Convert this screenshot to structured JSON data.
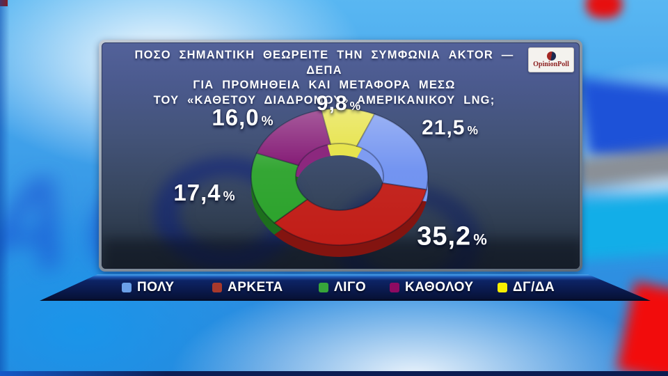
{
  "header": {
    "title_lines": [
      "ΠΟΣΟ ΣΗΜΑΝΤΙΚΗ ΘΕΩΡΕΙΤΕ ΤΗΝ ΣΥΜΦΩΝΙΑ AKTOR — ΔΕΠΑ",
      "ΓΙΑ ΠΡΟΜΗΘΕΙΑ ΚΑΙ ΜΕΤΑΦΟΡΑ ΜΕΣΩ",
      "ΤΟΥ «ΚΑΘΕΤΟΥ ΔΙΑΔΡΟΜΟΥ» ΑΜΕΡΙΚΑΝΙΚΟΥ LNG;"
    ]
  },
  "logo": {
    "text": "OpinionPoll"
  },
  "background": {
    "watermark_text": "ACTION"
  },
  "chart_data": {
    "type": "pie",
    "style": "3d-donut",
    "title": "ΠΟΣΟ ΣΗΜΑΝΤΙΚΗ ΘΕΩΡΕΙΤΕ ΤΗΝ ΣΥΜΦΩΝΙΑ AKTOR — ΔΕΠΑ ΓΙΑ ΠΡΟΜΗΘΕΙΑ ΚΑΙ ΜΕΤΑΦΟΡΑ ΜΕΣΩ ΤΟΥ «ΚΑΘΕΤΟΥ ΔΙΑΔΡΟΜΟΥ» ΑΜΕΡΙΚΑΝΙΚΟΥ LNG;",
    "value_format": "percent, comma decimal separator",
    "start_angle_deg_from_top": -12,
    "slices_clockwise_from_top": [
      {
        "name": "ΔΓ/ΔΑ",
        "value": 9.8,
        "color": "#e4e036"
      },
      {
        "name": "ΠΟΛΥ",
        "value": 21.5,
        "color": "#6c8ff0"
      },
      {
        "name": "ΑΡΚΕΤΑ",
        "value": 35.2,
        "color": "#c11d17"
      },
      {
        "name": "ΛΙΓΟ",
        "value": 17.4,
        "color": "#2aa22a"
      },
      {
        "name": "ΚΑΘΟΛΟΥ",
        "value": 16.0,
        "color": "#7c0b6c"
      }
    ],
    "legend_position": "bottom"
  },
  "legend": {
    "items": [
      {
        "label": "ΠΟΛΥ",
        "color": "#6ba0e8"
      },
      {
        "label": "ΑΡΚΕΤΑ",
        "color": "#a7392c"
      },
      {
        "label": "ΛΙΓΟ",
        "color": "#37a53a"
      },
      {
        "label": "ΚΑΘΟΛΟΥ",
        "color": "#8e0a62"
      },
      {
        "label": "ΔΓ/ΔΑ",
        "color": "#f8ef00"
      }
    ]
  }
}
